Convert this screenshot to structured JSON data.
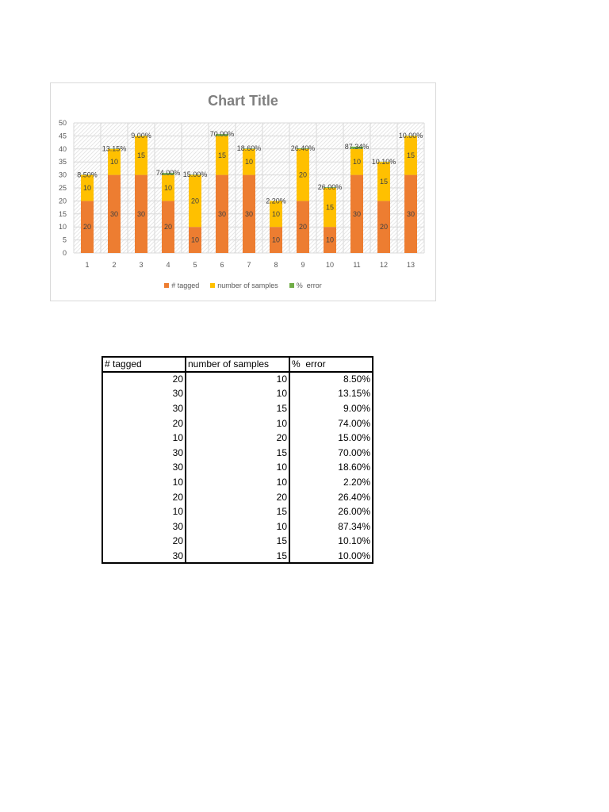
{
  "chart_data": {
    "type": "bar",
    "stacked": true,
    "title": "Chart Title",
    "xlabel": "",
    "ylabel": "",
    "categories": [
      "1",
      "2",
      "3",
      "4",
      "5",
      "6",
      "7",
      "8",
      "9",
      "10",
      "11",
      "12",
      "13"
    ],
    "series": [
      {
        "name": "# tagged",
        "color": "#ED7D31",
        "values": [
          20,
          30,
          30,
          20,
          10,
          30,
          30,
          10,
          20,
          10,
          30,
          20,
          30
        ]
      },
      {
        "name": "number of samples",
        "color": "#FFC000",
        "values": [
          10,
          10,
          15,
          10,
          20,
          15,
          10,
          10,
          20,
          15,
          10,
          15,
          15
        ]
      },
      {
        "name": "%  error",
        "color": "#70AD47",
        "values": [
          0.085,
          0.1315,
          0.09,
          0.74,
          0.15,
          0.7,
          0.186,
          0.022,
          0.264,
          0.26,
          0.8734,
          0.101,
          0.1
        ],
        "labels": [
          "8.50%",
          "13.15%",
          "9.00%",
          "74.00%",
          "15.00%",
          "70.00%",
          "18.60%",
          "2.20%",
          "26.40%",
          "26.00%",
          "87.34%",
          "10.10%",
          "10.00%"
        ]
      }
    ],
    "data_labels": true,
    "ylim": [
      0,
      50
    ],
    "ytick_step": 5,
    "grid": true,
    "legend": "bottom"
  },
  "table": {
    "headers": [
      "# tagged",
      "number of samples",
      "%  error"
    ],
    "rows": [
      [
        "20",
        "10",
        "8.50%"
      ],
      [
        "30",
        "10",
        "13.15%"
      ],
      [
        "30",
        "15",
        "9.00%"
      ],
      [
        "20",
        "10",
        "74.00%"
      ],
      [
        "10",
        "20",
        "15.00%"
      ],
      [
        "30",
        "15",
        "70.00%"
      ],
      [
        "30",
        "10",
        "18.60%"
      ],
      [
        "10",
        "10",
        "2.20%"
      ],
      [
        "20",
        "20",
        "26.40%"
      ],
      [
        "10",
        "15",
        "26.00%"
      ],
      [
        "30",
        "10",
        "87.34%"
      ],
      [
        "20",
        "15",
        "10.10%"
      ],
      [
        "30",
        "15",
        "10.00%"
      ]
    ]
  }
}
